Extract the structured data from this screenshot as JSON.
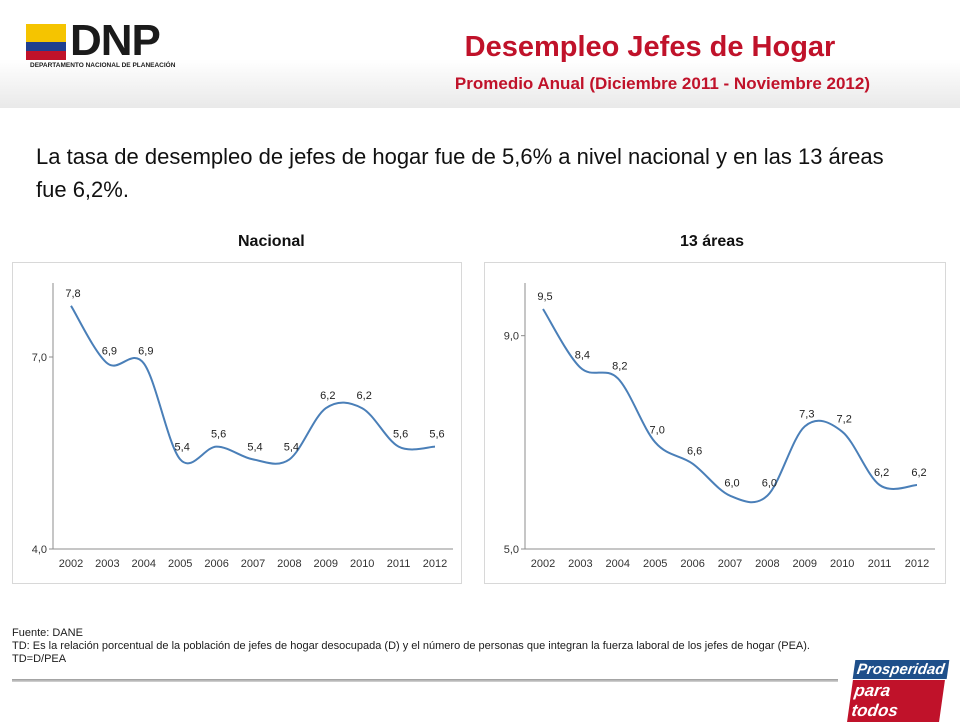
{
  "header": {
    "logo_text": "DNP",
    "logo_subtitle": "DEPARTAMENTO NACIONAL DE PLANEACIÓN",
    "title": "Desempleo Jefes de Hogar",
    "subtitle": "Promedio Anual (Diciembre  2011 - Noviembre 2012)",
    "flag_colors": [
      "#f5c400",
      "#1f3f8f",
      "#c0122a"
    ]
  },
  "summary": "La tasa de desempleo de jefes de hogar fue de 5,6% a nivel nacional y en las 13 áreas fue 6,2%.",
  "chart_data": [
    {
      "type": "line",
      "title": "Nacional",
      "x": [
        "2002",
        "2003",
        "2004",
        "2005",
        "2006",
        "2007",
        "2008",
        "2009",
        "2010",
        "2011",
        "2012"
      ],
      "values": [
        7.8,
        6.9,
        6.9,
        5.4,
        5.6,
        5.4,
        5.4,
        6.2,
        6.2,
        5.6,
        5.6
      ],
      "data_labels": [
        "7,8",
        "6,9",
        "6,9",
        "5,4",
        "5,6",
        "5,4",
        "5,4",
        "6,2",
        "6,2",
        "5,6",
        "5,6"
      ],
      "yticks": [
        4.0,
        7.0
      ],
      "ytick_labels": [
        "4,0",
        "7,0"
      ],
      "ylim": [
        4.0,
        8.0
      ],
      "line_color": "#4a7fb8",
      "grid": false
    },
    {
      "type": "line",
      "title": "13 áreas",
      "x": [
        "2002",
        "2003",
        "2004",
        "2005",
        "2006",
        "2007",
        "2008",
        "2009",
        "2010",
        "2011",
        "2012"
      ],
      "values": [
        9.5,
        8.4,
        8.2,
        7.0,
        6.6,
        6.0,
        6.0,
        7.3,
        7.2,
        6.2,
        6.2
      ],
      "data_labels": [
        "9,5",
        "8,4",
        "8,2",
        "7,0",
        "6,6",
        "6,0",
        "6,0",
        "7,3",
        "7,2",
        "6,2",
        "6,2"
      ],
      "yticks": [
        5.0,
        9.0
      ],
      "ytick_labels": [
        "5,0",
        "9,0"
      ],
      "ylim": [
        5.0,
        9.8
      ],
      "line_color": "#4a7fb8",
      "grid": false
    }
  ],
  "footer": {
    "source": "Fuente: DANE",
    "definition": "TD:  Es la relación porcentual de la población de jefes de hogar desocupada (D) y el número  de personas que integran  la fuerza laboral de los jefes de hogar (PEA). TD=D/PEA"
  },
  "brand": {
    "line1": "Prosperidad",
    "line2": "para todos"
  }
}
